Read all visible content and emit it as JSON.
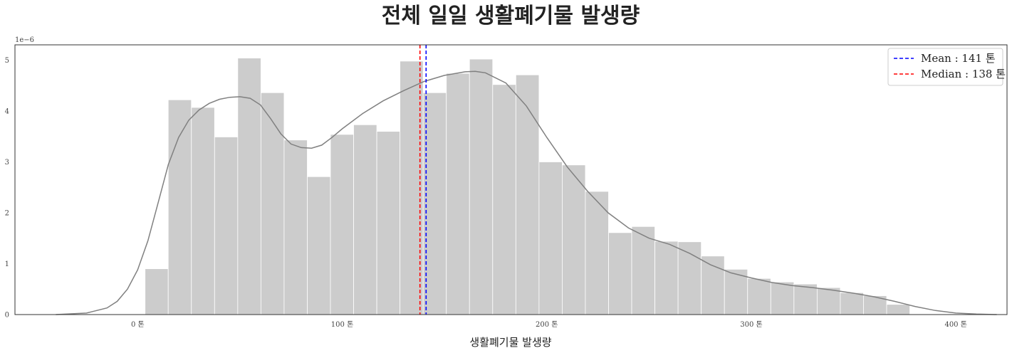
{
  "chart_data": {
    "type": "bar",
    "title": "전체 일일 생활폐기물 발생량",
    "xlabel": "생활폐기물 발생량",
    "ylabel": "",
    "y_offset_label": "1e−6",
    "xlim": [
      -60,
      425
    ],
    "ylim": [
      0,
      5.3
    ],
    "grid": false,
    "legend_position": "top-right",
    "x_ticks": [
      {
        "value": 0,
        "label": "0 톤"
      },
      {
        "value": 100,
        "label": "100 톤"
      },
      {
        "value": 200,
        "label": "200 톤"
      },
      {
        "value": 300,
        "label": "300 톤"
      },
      {
        "value": 400,
        "label": "400 톤"
      }
    ],
    "y_ticks": [
      {
        "value": 0,
        "label": "0"
      },
      {
        "value": 1,
        "label": "1"
      },
      {
        "value": 2,
        "label": "2"
      },
      {
        "value": 3,
        "label": "3"
      },
      {
        "value": 4,
        "label": "4"
      },
      {
        "value": 5,
        "label": "5"
      }
    ],
    "histogram": {
      "color": "#cccccc",
      "bin_start": 3.6,
      "bin_width": 11.33,
      "values": [
        0.9,
        4.22,
        4.07,
        3.49,
        5.04,
        4.36,
        3.43,
        2.71,
        3.54,
        3.73,
        3.6,
        4.98,
        4.36,
        4.74,
        5.02,
        4.52,
        4.71,
        3.0,
        2.94,
        2.42,
        1.61,
        1.73,
        1.44,
        1.43,
        1.15,
        0.89,
        0.71,
        0.64,
        0.6,
        0.53,
        0.43,
        0.37,
        0.2
      ]
    },
    "kde": {
      "color": "#808080",
      "x": [
        -40,
        -25,
        -15,
        -10,
        -5,
        0,
        5,
        10,
        15,
        20,
        25,
        30,
        35,
        40,
        45,
        50,
        55,
        60,
        65,
        70,
        75,
        80,
        85,
        90,
        95,
        100,
        110,
        120,
        130,
        140,
        150,
        160,
        165,
        170,
        180,
        190,
        200,
        210,
        220,
        230,
        240,
        250,
        260,
        270,
        280,
        290,
        300,
        310,
        320,
        330,
        340,
        350,
        360,
        370,
        380,
        390,
        400,
        410,
        420
      ],
      "y": [
        0.0,
        0.03,
        0.13,
        0.26,
        0.5,
        0.88,
        1.45,
        2.2,
        2.95,
        3.48,
        3.82,
        4.02,
        4.15,
        4.23,
        4.27,
        4.28,
        4.25,
        4.12,
        3.85,
        3.55,
        3.35,
        3.28,
        3.27,
        3.33,
        3.48,
        3.65,
        3.95,
        4.2,
        4.4,
        4.58,
        4.7,
        4.77,
        4.78,
        4.75,
        4.55,
        4.1,
        3.48,
        2.9,
        2.42,
        2.0,
        1.7,
        1.5,
        1.38,
        1.2,
        0.98,
        0.82,
        0.72,
        0.63,
        0.57,
        0.53,
        0.48,
        0.42,
        0.35,
        0.26,
        0.16,
        0.08,
        0.03,
        0.01,
        0.0
      ]
    },
    "vlines": [
      {
        "name": "Mean : 141 톤",
        "value": 141,
        "color": "#0000ff",
        "dash": true
      },
      {
        "name": "Median : 138 톤",
        "value": 138,
        "color": "#ff0000",
        "dash": true
      }
    ],
    "legend": [
      {
        "label": "Mean : 141 톤",
        "color": "#0000ff"
      },
      {
        "label": "Median : 138 톤",
        "color": "#ff0000"
      }
    ]
  }
}
